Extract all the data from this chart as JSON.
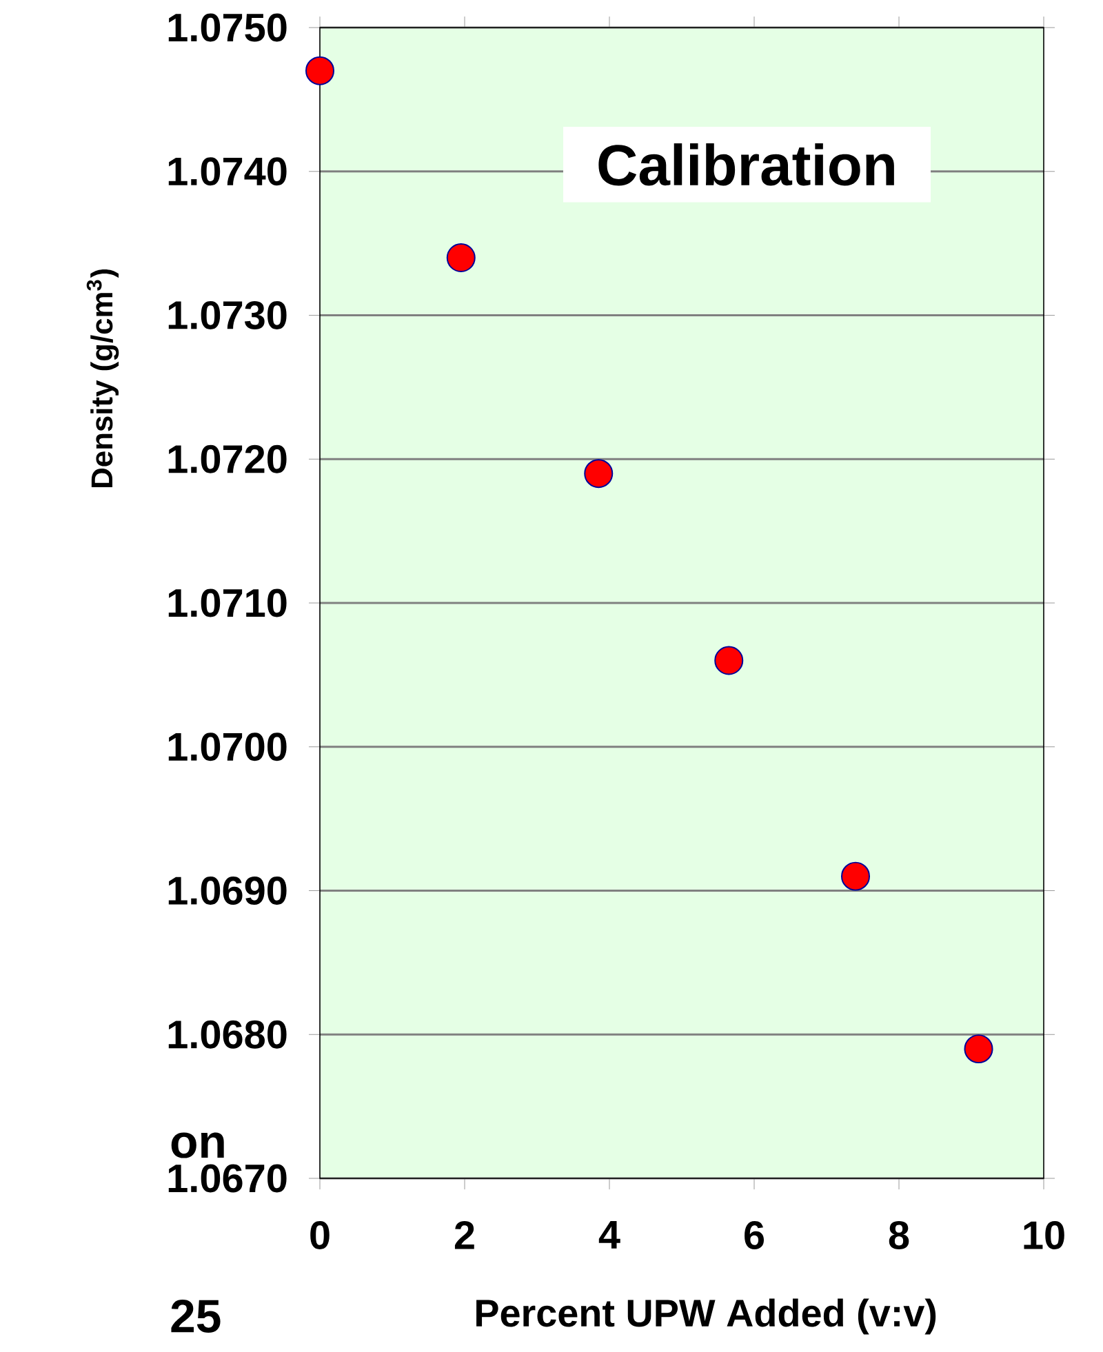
{
  "chart_data": {
    "type": "scatter",
    "xlabel": "Percent UPW Added (v:v)",
    "ylabel": "Density (g/cm$^{3}$)",
    "annotations": [
      "Calibration",
      "on",
      "25"
    ],
    "x": [
      0,
      1.95,
      3.85,
      5.65,
      7.4,
      9.1
    ],
    "values": [
      1.0747,
      1.0734,
      1.0719,
      1.0706,
      1.0691,
      1.0679
    ],
    "color": "#ff0000",
    "marker": "circle",
    "xlim": [
      0,
      10
    ],
    "xticks": [
      0,
      2,
      4,
      6,
      8,
      10
    ],
    "ylim": [
      1.067,
      1.075
    ],
    "yticks": [
      {
        "value": 1.067,
        "label": "1.0670"
      },
      {
        "value": 1.068,
        "label": "1.0680"
      },
      {
        "value": 1.069,
        "label": "1.0690"
      },
      {
        "value": 1.07,
        "label": "1.0700"
      },
      {
        "value": 1.071,
        "label": "1.0710"
      },
      {
        "value": 1.072,
        "label": "1.0720"
      },
      {
        "value": 1.073,
        "label": "1.0730"
      },
      {
        "value": 1.074,
        "label": "1.0740"
      },
      {
        "value": 1.075,
        "label": "1.0750"
      }
    ],
    "grid": "y"
  }
}
